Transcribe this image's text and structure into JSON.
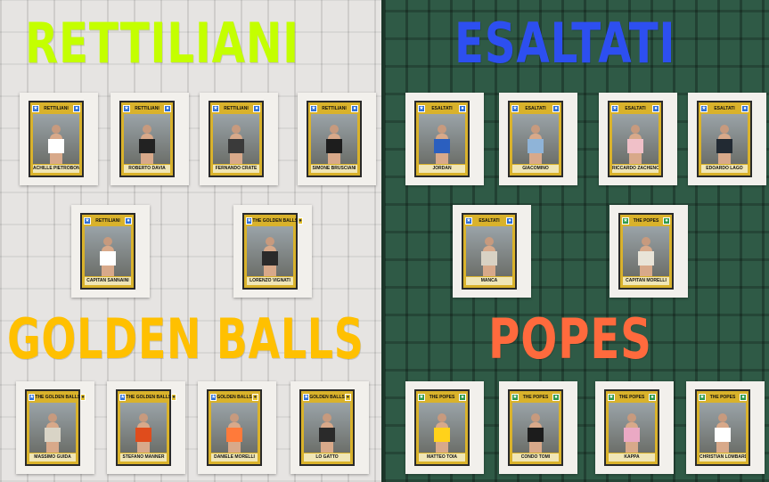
{
  "teams": {
    "rettiliani": "RETTILIANI",
    "esaltati": "ESALTATI",
    "golden_balls": "GOLDEN BALLS",
    "popes": "POPES"
  },
  "colors": {
    "rettiliani": "#c4ff00",
    "esaltati": "#2d4ff0",
    "golden_balls": "#ffc000",
    "popes": "#ff6a3d"
  },
  "cards": {
    "r1": {
      "team": "RETTILIANI",
      "name": "ACHILLE PIETROBONI",
      "icon": "snake-crest-icon"
    },
    "r2": {
      "team": "RETTILIANI",
      "name": "ROBERTO DAVIA",
      "icon": "snake-crest-icon"
    },
    "r3": {
      "team": "RETTILIANI",
      "name": "FERNANDO CRATE",
      "icon": "snake-crest-icon"
    },
    "r4": {
      "team": "RETTILIANI",
      "name": "SIMONE BRUSCIANI",
      "icon": "snake-crest-icon"
    },
    "r5": {
      "team": "RETTILIANI",
      "name": "CAPITAN SANNAINI",
      "icon": "snake-crest-icon"
    },
    "g0": {
      "team": "THE GOLDEN BALLS",
      "name": "LORENZO VIGNATI",
      "icon": "ball-crest-icon"
    },
    "e1": {
      "team": "ESALTATI",
      "name": "JORDAN",
      "icon": "star-crest-icon"
    },
    "e2": {
      "team": "ESALTATI",
      "name": "GIACOMINO",
      "icon": "star-crest-icon"
    },
    "e3": {
      "team": "ESALTATI",
      "name": "RICCARDO ZACHENO",
      "icon": "star-crest-icon"
    },
    "e4": {
      "team": "ESALTATI",
      "name": "EDOARDO LAGO",
      "icon": "star-crest-icon"
    },
    "e5": {
      "team": "ESALTATI",
      "name": "MANCA",
      "icon": "star-crest-icon"
    },
    "p0": {
      "team": "THE POPES",
      "name": "CAPITAN MORELLI",
      "icon": "cross-crest-icon"
    },
    "g1": {
      "team": "THE GOLDEN BALLS",
      "name": "MASSIMO GUIDA",
      "icon": "ball-crest-icon"
    },
    "g2": {
      "team": "THE GOLDEN BALLS",
      "name": "STEFANO MANNER",
      "icon": "ball-crest-icon"
    },
    "g3": {
      "team": "GOLDEN BALLS",
      "name": "DANIELE MORELLI",
      "icon": "ball-crest-icon"
    },
    "g4": {
      "team": "GOLDEN BALLS",
      "name": "LO GATTO",
      "icon": "ball-crest-icon"
    },
    "p1": {
      "team": "THE POPES",
      "name": "MATTEO TOIA",
      "icon": "cross-crest-icon"
    },
    "p2": {
      "team": "THE POPES",
      "name": "CONDO TOMI",
      "icon": "cross-crest-icon"
    },
    "p3": {
      "team": "THE POPES",
      "name": "KAPPA",
      "icon": "cross-crest-icon"
    },
    "p4": {
      "team": "THE POPES",
      "name": "CHRISTIAN LOMBARDE",
      "icon": "cross-crest-icon"
    }
  }
}
